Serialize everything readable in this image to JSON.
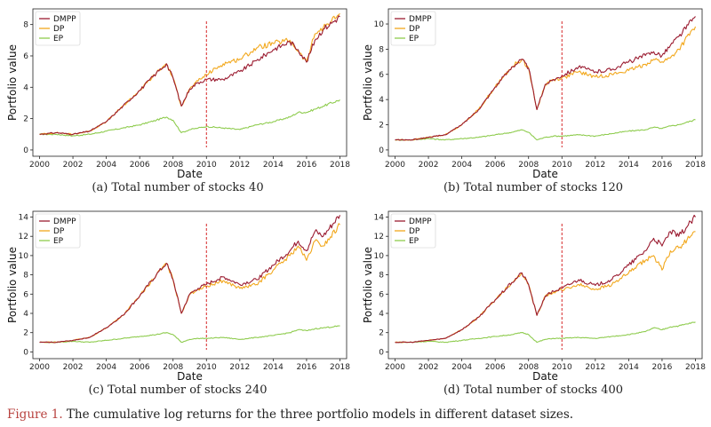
{
  "figure": {
    "label": "Figure 1.",
    "text": " The cumulative log returns for the three portfolio models in different dataset sizes."
  },
  "chart_data": [
    {
      "type": "line",
      "caption": "(a)  Total number of stocks 40",
      "xlabel": "Date",
      "ylabel": "Portfolio value",
      "xticks": [
        "2000",
        "2002",
        "2004",
        "2006",
        "2008",
        "2010",
        "2012",
        "2014",
        "2016",
        "2018"
      ],
      "yticks": [
        0,
        2,
        4,
        6,
        8
      ],
      "xlim": [
        1999.6,
        2018.4
      ],
      "ylim": [
        -0.4,
        9.0
      ],
      "vline": 2010,
      "legend_position": "top-left",
      "colors": {
        "DMPP": "#9b1c31",
        "DP": "#f2a81d",
        "EP": "#8fcc4f"
      },
      "x": [
        2000,
        2001,
        2002,
        2003,
        2004,
        2005,
        2006,
        2007,
        2007.6,
        2008,
        2008.5,
        2009,
        2009.5,
        2010,
        2011,
        2012,
        2013,
        2014,
        2015,
        2015.5,
        2016,
        2016.5,
        2017,
        2018
      ],
      "series": [
        {
          "name": "DMPP",
          "values": [
            1.0,
            1.1,
            1.0,
            1.2,
            1.8,
            2.8,
            3.8,
            4.9,
            5.5,
            4.6,
            2.8,
            3.9,
            4.3,
            4.5,
            4.5,
            5.0,
            5.7,
            6.4,
            6.9,
            6.4,
            5.6,
            7.0,
            7.7,
            8.5
          ]
        },
        {
          "name": "DP",
          "values": [
            1.0,
            1.1,
            1.0,
            1.2,
            1.8,
            2.8,
            3.8,
            4.9,
            5.5,
            4.6,
            2.8,
            3.9,
            4.4,
            4.8,
            5.5,
            5.8,
            6.5,
            6.8,
            7.0,
            6.3,
            5.6,
            7.4,
            7.8,
            8.7
          ]
        },
        {
          "name": "EP",
          "values": [
            1.0,
            1.0,
            0.9,
            1.0,
            1.2,
            1.4,
            1.6,
            1.9,
            2.1,
            1.9,
            1.1,
            1.3,
            1.4,
            1.5,
            1.4,
            1.3,
            1.6,
            1.8,
            2.1,
            2.4,
            2.4,
            2.6,
            2.8,
            3.2
          ]
        }
      ]
    },
    {
      "type": "line",
      "caption": "(b)  Total number of stocks 120",
      "xlabel": "Date",
      "ylabel": "Portfolio value",
      "xticks": [
        "2000",
        "2002",
        "2004",
        "2006",
        "2008",
        "2010",
        "2012",
        "2014",
        "2016",
        "2018"
      ],
      "yticks": [
        0,
        2,
        4,
        6,
        8,
        10
      ],
      "xlim": [
        1999.6,
        2018.4
      ],
      "ylim": [
        -0.5,
        11.2
      ],
      "vline": 2010,
      "legend_position": "top-left",
      "colors": {
        "DMPP": "#9b1c31",
        "DP": "#f2a81d",
        "EP": "#8fcc4f"
      },
      "x": [
        2000,
        2001,
        2002,
        2003,
        2004,
        2005,
        2006,
        2007,
        2007.6,
        2008,
        2008.5,
        2009,
        2009.5,
        2010,
        2011,
        2012,
        2013,
        2014,
        2015,
        2015.5,
        2016,
        2016.5,
        2017,
        2018
      ],
      "series": [
        {
          "name": "DMPP",
          "values": [
            0.8,
            0.8,
            1.0,
            1.2,
            2.0,
            3.2,
            5.0,
            6.6,
            7.2,
            6.5,
            3.2,
            5.2,
            5.6,
            5.9,
            6.6,
            6.2,
            6.4,
            7.0,
            7.5,
            7.8,
            7.5,
            8.3,
            9.0,
            10.6
          ]
        },
        {
          "name": "DP",
          "values": [
            0.8,
            0.8,
            1.0,
            1.2,
            2.0,
            3.2,
            5.0,
            6.6,
            7.2,
            6.5,
            3.2,
            5.2,
            5.6,
            5.7,
            6.2,
            5.8,
            6.0,
            6.3,
            6.8,
            7.2,
            7.0,
            7.3,
            8.0,
            9.8
          ]
        },
        {
          "name": "EP",
          "values": [
            0.8,
            0.8,
            0.9,
            0.8,
            0.9,
            1.0,
            1.2,
            1.4,
            1.6,
            1.4,
            0.8,
            1.0,
            1.1,
            1.1,
            1.2,
            1.1,
            1.3,
            1.5,
            1.6,
            1.8,
            1.7,
            1.9,
            2.0,
            2.4
          ]
        }
      ]
    },
    {
      "type": "line",
      "caption": "(c)  Total number of stocks 240",
      "xlabel": "Date",
      "ylabel": "Portfolio value",
      "xticks": [
        "2000",
        "2002",
        "2004",
        "2006",
        "2008",
        "2010",
        "2012",
        "2014",
        "2016",
        "2018"
      ],
      "yticks": [
        0,
        2,
        4,
        6,
        8,
        10,
        12,
        14
      ],
      "xlim": [
        1999.6,
        2018.4
      ],
      "ylim": [
        -0.7,
        14.6
      ],
      "vline": 2010,
      "legend_position": "top-left",
      "colors": {
        "DMPP": "#9b1c31",
        "DP": "#f2a81d",
        "EP": "#8fcc4f"
      },
      "x": [
        2000,
        2001,
        2002,
        2003,
        2004,
        2005,
        2006,
        2007,
        2007.6,
        2008,
        2008.5,
        2009,
        2009.5,
        2010,
        2011,
        2012,
        2013,
        2014,
        2015,
        2015.5,
        2016,
        2016.5,
        2017,
        2018
      ],
      "series": [
        {
          "name": "DMPP",
          "values": [
            1.0,
            1.0,
            1.2,
            1.5,
            2.5,
            3.8,
            5.8,
            8.0,
            9.2,
            7.5,
            4.0,
            6.0,
            6.6,
            7.0,
            7.8,
            7.0,
            7.5,
            9.0,
            10.5,
            11.5,
            10.5,
            12.5,
            12.0,
            14.2
          ]
        },
        {
          "name": "DP",
          "values": [
            1.0,
            1.0,
            1.2,
            1.5,
            2.5,
            3.8,
            5.8,
            8.0,
            9.2,
            7.5,
            4.0,
            6.0,
            6.5,
            6.8,
            7.4,
            6.6,
            7.0,
            8.5,
            10.0,
            11.0,
            9.5,
            11.5,
            11.0,
            13.2
          ]
        },
        {
          "name": "EP",
          "values": [
            1.0,
            1.0,
            1.1,
            1.0,
            1.2,
            1.4,
            1.6,
            1.8,
            2.0,
            1.8,
            1.0,
            1.3,
            1.4,
            1.4,
            1.5,
            1.3,
            1.5,
            1.7,
            2.0,
            2.3,
            2.2,
            2.4,
            2.5,
            2.7
          ]
        }
      ]
    },
    {
      "type": "line",
      "caption": "(d)  Total number of stocks 400",
      "xlabel": "Date",
      "ylabel": "Portfolio value",
      "xticks": [
        "2000",
        "2002",
        "2004",
        "2006",
        "2008",
        "2010",
        "2012",
        "2014",
        "2016",
        "2018"
      ],
      "yticks": [
        0,
        2,
        4,
        6,
        8,
        10,
        12,
        14
      ],
      "xlim": [
        1999.6,
        2018.4
      ],
      "ylim": [
        -0.7,
        14.6
      ],
      "vline": 2010,
      "legend_position": "top-left",
      "colors": {
        "DMPP": "#9b1c31",
        "DP": "#f2a81d",
        "EP": "#8fcc4f"
      },
      "x": [
        2000,
        2001,
        2002,
        2003,
        2004,
        2005,
        2006,
        2007,
        2007.6,
        2008,
        2008.5,
        2009,
        2009.5,
        2010,
        2011,
        2012,
        2013,
        2014,
        2015,
        2015.5,
        2016,
        2016.5,
        2017,
        2018
      ],
      "series": [
        {
          "name": "DMPP",
          "values": [
            1.0,
            1.0,
            1.2,
            1.4,
            2.3,
            3.6,
            5.4,
            7.2,
            8.2,
            7.0,
            3.8,
            5.8,
            6.3,
            6.6,
            7.5,
            6.9,
            7.5,
            9.0,
            10.5,
            11.8,
            11.0,
            12.5,
            12.0,
            14.0
          ]
        },
        {
          "name": "DP",
          "values": [
            1.0,
            1.0,
            1.2,
            1.4,
            2.3,
            3.6,
            5.4,
            7.2,
            8.2,
            7.0,
            3.8,
            5.8,
            6.2,
            6.4,
            7.0,
            6.5,
            7.0,
            8.2,
            9.5,
            10.0,
            8.5,
            10.5,
            10.8,
            12.5
          ]
        },
        {
          "name": "EP",
          "values": [
            1.0,
            1.0,
            1.1,
            1.0,
            1.2,
            1.4,
            1.6,
            1.8,
            2.0,
            1.8,
            1.0,
            1.3,
            1.4,
            1.4,
            1.5,
            1.4,
            1.6,
            1.8,
            2.1,
            2.5,
            2.3,
            2.6,
            2.7,
            3.1
          ]
        }
      ]
    }
  ]
}
